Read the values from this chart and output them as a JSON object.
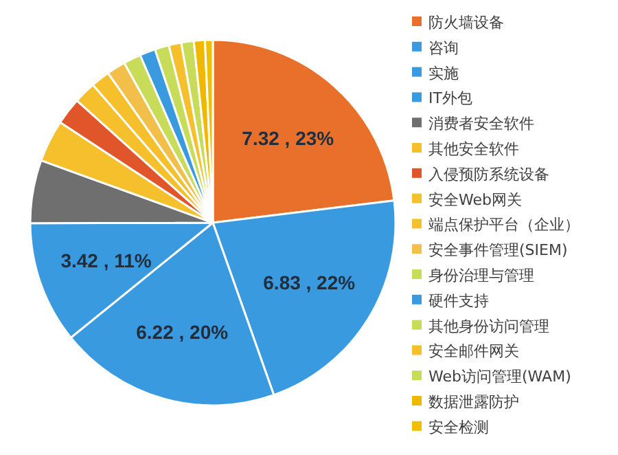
{
  "chart_data": {
    "type": "pie",
    "categories": [
      "防火墙设备",
      "咨询",
      "实施",
      "IT外包",
      "消费者安全软件",
      "其他安全软件",
      "入侵预防系统设备",
      "安全Web网关",
      "端点保护平台（企业）",
      "安全事件管理(SIEM)",
      "身份治理与管理",
      "硬件支持",
      "其他身份访问管理",
      "安全邮件网关",
      "Web访问管理(WAM)",
      "数据泄露防护",
      "安全检测"
    ],
    "values": [
      7.32,
      6.83,
      6.22,
      3.42,
      1.77,
      1.18,
      0.76,
      0.62,
      0.53,
      0.53,
      0.49,
      0.44,
      0.4,
      0.35,
      0.35,
      0.31,
      0.22
    ],
    "value_labels": [
      "7.32 , 23%",
      "6.83 , 22%",
      "6.22 , 20%",
      "3.42 , 11%",
      null,
      null,
      null,
      null,
      null,
      null,
      null,
      null,
      null,
      null,
      null,
      null,
      null
    ],
    "colors": [
      "#e8702a",
      "#3a9ae0",
      "#3a9ae0",
      "#3a9ae0",
      "#6f6f6f",
      "#f5c02c",
      "#e0562a",
      "#f5c02c",
      "#f5c02c",
      "#f2c04a",
      "#c8dc5a",
      "#3a9ae0",
      "#c8dc5a",
      "#f5c02c",
      "#c8dc5a",
      "#f0b800",
      "#f0c000"
    ],
    "legend": "right"
  }
}
